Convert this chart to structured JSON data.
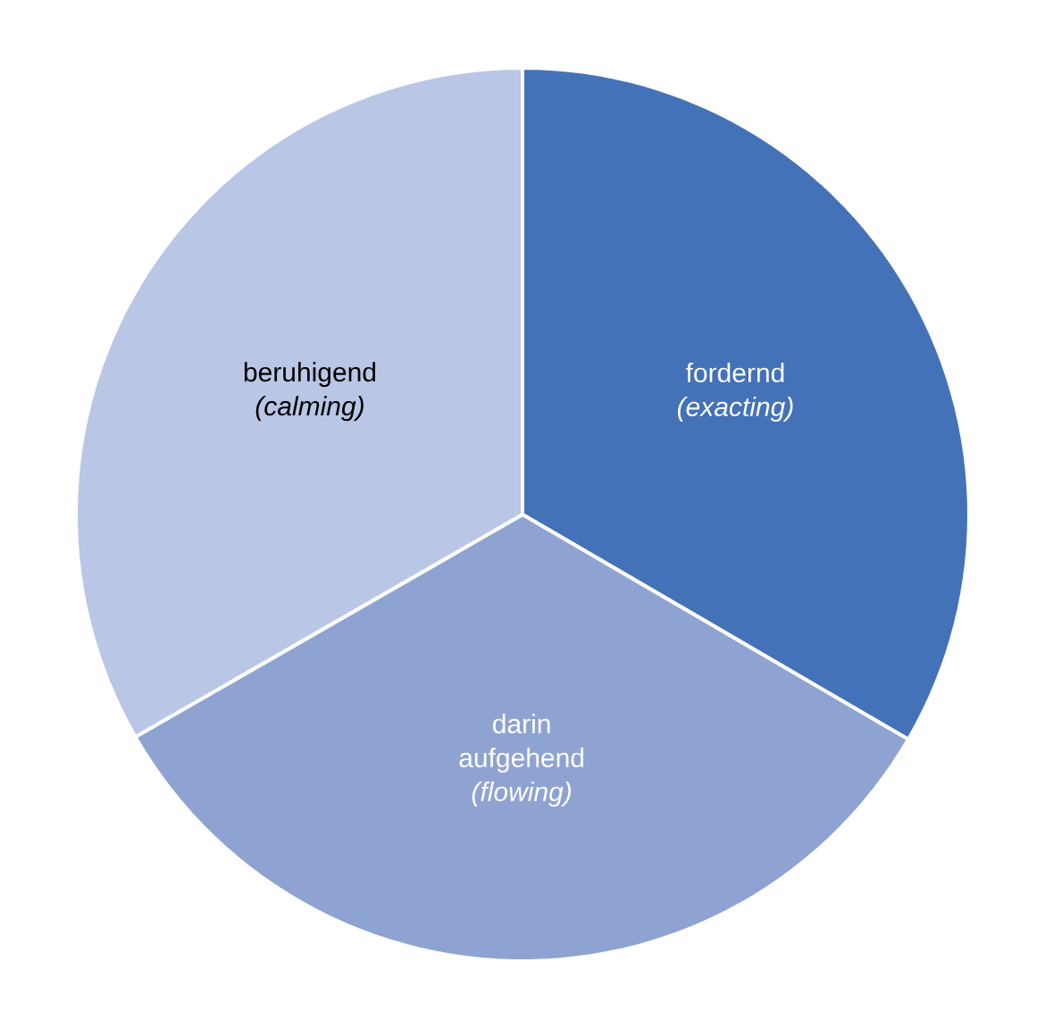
{
  "chart_data": {
    "type": "pie",
    "categories": [
      "fordernd *(exacting)*",
      "darin aufgehend *(flowing)*",
      "beruhigend *(calming)*"
    ],
    "values": [
      33.4,
      33.3,
      33.3
    ],
    "colors": [
      "#4472b8",
      "#8fa3d3",
      "#b9c6e6"
    ]
  }
}
